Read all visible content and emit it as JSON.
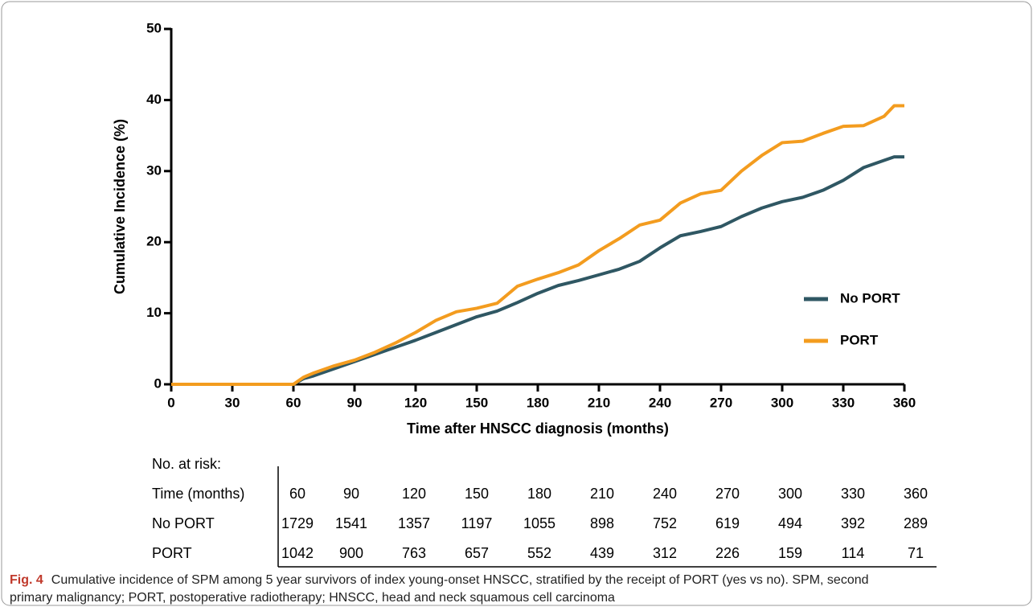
{
  "chart_data": {
    "type": "line",
    "xlabel": "Time after HNSCC diagnosis (months)",
    "ylabel": "Cumulative Incidence (%)",
    "xlim": [
      0,
      360
    ],
    "ylim": [
      0,
      50
    ],
    "xticks": [
      0,
      30,
      60,
      90,
      120,
      150,
      180,
      210,
      240,
      270,
      300,
      330,
      360
    ],
    "yticks": [
      0,
      10,
      20,
      30,
      40,
      50
    ],
    "legend": "right",
    "x": [
      0,
      60,
      65,
      70,
      80,
      90,
      100,
      110,
      120,
      130,
      140,
      150,
      160,
      170,
      180,
      190,
      200,
      210,
      220,
      230,
      240,
      250,
      260,
      270,
      280,
      290,
      300,
      310,
      320,
      330,
      340,
      350,
      355,
      360
    ],
    "series": [
      {
        "name": "No PORT",
        "color": "#2f5763",
        "values": [
          0,
          0,
          0.8,
          1.2,
          2.2,
          3.2,
          4.2,
          5.2,
          6.2,
          7.3,
          8.4,
          9.5,
          10.3,
          11.5,
          12.8,
          13.9,
          14.6,
          15.4,
          16.2,
          17.3,
          19.2,
          20.9,
          21.5,
          22.2,
          23.6,
          24.8,
          25.7,
          26.3,
          27.3,
          28.7,
          30.5,
          31.5,
          32,
          32
        ]
      },
      {
        "name": "PORT",
        "color": "#f39c1f",
        "values": [
          0,
          0,
          1,
          1.6,
          2.6,
          3.4,
          4.5,
          5.8,
          7.3,
          9,
          10.2,
          10.7,
          11.4,
          13.8,
          14.8,
          15.7,
          16.8,
          18.8,
          20.5,
          22.4,
          23.1,
          25.5,
          26.8,
          27.3,
          30,
          32.2,
          34,
          34.2,
          35.3,
          36.3,
          36.4,
          37.7,
          39.2,
          39.2
        ]
      }
    ],
    "risk_table": {
      "title": "No. at risk:",
      "header": "Time (months)",
      "times": [
        60,
        90,
        120,
        150,
        180,
        210,
        240,
        270,
        300,
        330,
        360
      ],
      "rows": [
        {
          "name": "No PORT",
          "values": [
            1729,
            1541,
            1357,
            1197,
            1055,
            898,
            752,
            619,
            494,
            392,
            289
          ]
        },
        {
          "name": "PORT",
          "values": [
            1042,
            900,
            763,
            657,
            552,
            439,
            312,
            226,
            159,
            114,
            71
          ]
        }
      ]
    }
  },
  "caption": {
    "label": "Fig. 4",
    "line1": "Cumulative incidence of SPM among 5 year survivors of index young-onset HNSCC, stratified by the receipt of PORT (yes vs no). SPM, second",
    "line2": "primary malignancy; PORT, postoperative radiotherapy; HNSCC, head and neck squamous cell carcinoma"
  }
}
